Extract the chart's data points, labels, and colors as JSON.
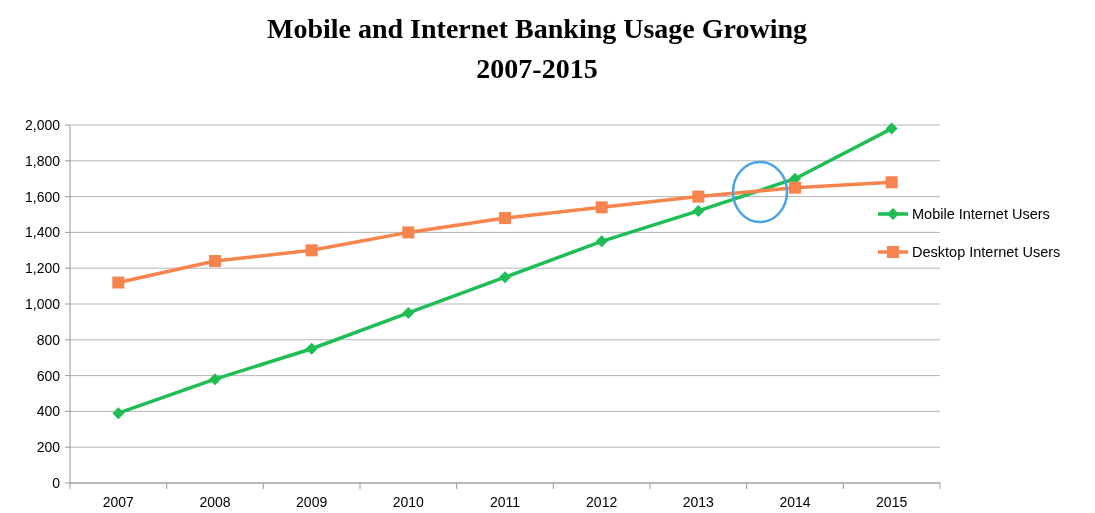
{
  "chart_data": {
    "type": "line",
    "title": "Mobile and Internet Banking Usage Growing\n2007-2015",
    "categories": [
      "2007",
      "2008",
      "2009",
      "2010",
      "2011",
      "2012",
      "2013",
      "2014",
      "2015"
    ],
    "series": [
      {
        "name": "Mobile Internet Users",
        "color": "#1fbe55",
        "marker": "diamond",
        "values": [
          390,
          580,
          750,
          950,
          1150,
          1350,
          1520,
          1700,
          1980
        ]
      },
      {
        "name": "Desktop Internet Users",
        "color": "#f7834d",
        "marker": "square",
        "values": [
          1120,
          1240,
          1300,
          1400,
          1480,
          1540,
          1600,
          1650,
          1680
        ]
      }
    ],
    "ylim": [
      0,
      2000
    ],
    "yticks": [
      {
        "value": 0,
        "label": "0"
      },
      {
        "value": 200,
        "label": "200"
      },
      {
        "value": 400,
        "label": "400"
      },
      {
        "value": 600,
        "label": "600"
      },
      {
        "value": 800,
        "label": "800"
      },
      {
        "value": 1000,
        "label": "1,000"
      },
      {
        "value": 1200,
        "label": "1,200"
      },
      {
        "value": 1400,
        "label": "1,400"
      },
      {
        "value": 1600,
        "label": "1,600"
      },
      {
        "value": 1800,
        "label": "1,800"
      },
      {
        "value": 2000,
        "label": "2,000"
      }
    ],
    "grid": "y",
    "legend": "right"
  }
}
